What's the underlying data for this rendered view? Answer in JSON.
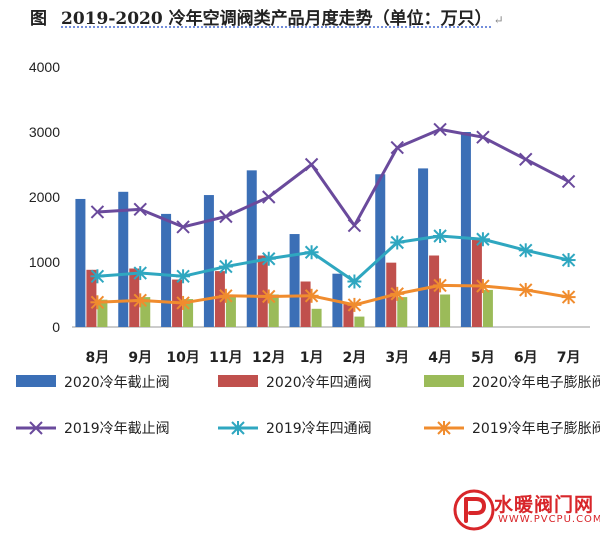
{
  "figure_prefix": "图",
  "title_main": "2019-2020 冷年空调阀类产品月度走势（单位：万只）",
  "title_mark": "↵",
  "chart_data": {
    "type": "bar+line",
    "title": "2019-2020 冷年空调阀类产品月度走势（单位：万只）",
    "unit": "万只",
    "categories": [
      "8月",
      "9月",
      "10月",
      "11月",
      "12月",
      "1月",
      "2月",
      "3月",
      "4月",
      "5月",
      "6月",
      "7月"
    ],
    "ylim": [
      0,
      4000
    ],
    "yticks": [
      0,
      1000,
      2000,
      3000,
      4000
    ],
    "grid": false,
    "legend_position": "bottom",
    "bar_series": [
      {
        "name": "2020冷年截止阀",
        "color": "#3b6fb6",
        "values": [
          1970,
          2080,
          1740,
          2030,
          2410,
          1430,
          820,
          2350,
          2440,
          3000,
          null,
          null
        ]
      },
      {
        "name": "2020冷年四通阀",
        "color": "#c0504d",
        "values": [
          880,
          900,
          730,
          860,
          1100,
          700,
          360,
          990,
          1100,
          1340,
          null,
          null
        ]
      },
      {
        "name": "2020冷年电子膨胀阀",
        "color": "#9bbb59",
        "values": [
          420,
          460,
          430,
          490,
          500,
          280,
          160,
          460,
          500,
          570,
          null,
          null
        ]
      }
    ],
    "line_series": [
      {
        "name": "2019冷年截止阀",
        "color": "#6a4a9c",
        "marker": "x",
        "values": [
          1770,
          1810,
          1540,
          1700,
          2000,
          2500,
          1560,
          2760,
          3040,
          2920,
          2580,
          2240
        ]
      },
      {
        "name": "2019冷年四通阀",
        "color": "#2fa7c0",
        "marker": "asterisk",
        "values": [
          780,
          830,
          780,
          930,
          1050,
          1150,
          700,
          1300,
          1400,
          1350,
          1180,
          1030
        ]
      },
      {
        "name": "2019冷年电子膨胀阀",
        "color": "#f08c2e",
        "marker": "asterisk",
        "values": [
          380,
          410,
          370,
          480,
          470,
          480,
          340,
          510,
          640,
          630,
          570,
          460
        ]
      }
    ]
  },
  "watermark": {
    "name": "水暖阀门网",
    "url": "WWW.PVCPU.COM",
    "color": "#d8262a"
  }
}
